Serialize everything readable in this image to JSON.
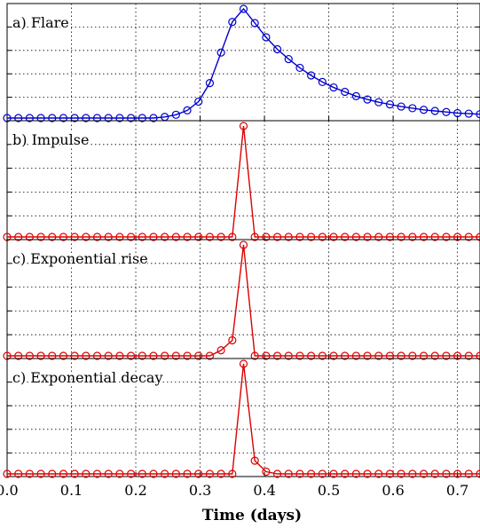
{
  "chart_data": {
    "type": "line",
    "xlabel": "Time (days)",
    "xlim": [
      0.0,
      0.735
    ],
    "x_ticks": [
      "0.0",
      "0.1",
      "0.2",
      "0.3",
      "0.4",
      "0.5",
      "0.6",
      "0.7"
    ],
    "grid": true,
    "panels": [
      {
        "label": "a) Flare",
        "color": "#0000cc",
        "ylim": [
          0,
          1
        ],
        "x": [
          0.0,
          0.0175,
          0.035,
          0.0525,
          0.07,
          0.0875,
          0.105,
          0.1225,
          0.14,
          0.1575,
          0.175,
          0.1925,
          0.21,
          0.2275,
          0.245,
          0.2625,
          0.28,
          0.2975,
          0.315,
          0.3325,
          0.35,
          0.3675,
          0.385,
          0.4025,
          0.42,
          0.4375,
          0.455,
          0.4725,
          0.49,
          0.5075,
          0.525,
          0.5425,
          0.56,
          0.5775,
          0.595,
          0.6125,
          0.63,
          0.6475,
          0.665,
          0.6825,
          0.7,
          0.7175,
          0.735
        ],
        "y": [
          0.0,
          0.0,
          0.0,
          0.0,
          0.0,
          0.0,
          0.0,
          0.0,
          0.0,
          0.0,
          0.0,
          0.0,
          0.0,
          0.0,
          0.01,
          0.03,
          0.07,
          0.15,
          0.32,
          0.6,
          0.88,
          1.0,
          0.87,
          0.74,
          0.63,
          0.54,
          0.46,
          0.39,
          0.33,
          0.28,
          0.24,
          0.2,
          0.17,
          0.145,
          0.125,
          0.105,
          0.09,
          0.075,
          0.065,
          0.055,
          0.045,
          0.04,
          0.035
        ]
      },
      {
        "label": "b) Impulse",
        "color": "#dd0000",
        "ylim": [
          0,
          1
        ],
        "x": [
          0.0,
          0.0175,
          0.035,
          0.0525,
          0.07,
          0.0875,
          0.105,
          0.1225,
          0.14,
          0.1575,
          0.175,
          0.1925,
          0.21,
          0.2275,
          0.245,
          0.2625,
          0.28,
          0.2975,
          0.315,
          0.3325,
          0.35,
          0.3675,
          0.385,
          0.4025,
          0.42,
          0.4375,
          0.455,
          0.4725,
          0.49,
          0.5075,
          0.525,
          0.5425,
          0.56,
          0.5775,
          0.595,
          0.6125,
          0.63,
          0.6475,
          0.665,
          0.6825,
          0.7,
          0.7175,
          0.735
        ],
        "y": [
          0,
          0,
          0,
          0,
          0,
          0,
          0,
          0,
          0,
          0,
          0,
          0,
          0,
          0,
          0,
          0,
          0,
          0,
          0,
          0,
          0,
          1.0,
          0,
          0,
          0,
          0,
          0,
          0,
          0,
          0,
          0,
          0,
          0,
          0,
          0,
          0,
          0,
          0,
          0,
          0,
          0,
          0,
          0
        ]
      },
      {
        "label": "c) Exponential rise",
        "color": "#dd0000",
        "ylim": [
          0,
          1
        ],
        "x": [
          0.0,
          0.0175,
          0.035,
          0.0525,
          0.07,
          0.0875,
          0.105,
          0.1225,
          0.14,
          0.1575,
          0.175,
          0.1925,
          0.21,
          0.2275,
          0.245,
          0.2625,
          0.28,
          0.2975,
          0.315,
          0.3325,
          0.35,
          0.3675,
          0.385,
          0.4025,
          0.42,
          0.4375,
          0.455,
          0.4725,
          0.49,
          0.5075,
          0.525,
          0.5425,
          0.56,
          0.5775,
          0.595,
          0.6125,
          0.63,
          0.6475,
          0.665,
          0.6825,
          0.7,
          0.7175,
          0.735
        ],
        "y": [
          0,
          0,
          0,
          0,
          0,
          0,
          0,
          0,
          0,
          0,
          0,
          0,
          0,
          0,
          0,
          0,
          0,
          0,
          0.0,
          0.05,
          0.14,
          1.0,
          0,
          0,
          0,
          0,
          0,
          0,
          0,
          0,
          0,
          0,
          0,
          0,
          0,
          0,
          0,
          0,
          0,
          0,
          0,
          0,
          0
        ]
      },
      {
        "label": "c) Exponential decay",
        "color": "#dd0000",
        "ylim": [
          0,
          1
        ],
        "x": [
          0.0,
          0.0175,
          0.035,
          0.0525,
          0.07,
          0.0875,
          0.105,
          0.1225,
          0.14,
          0.1575,
          0.175,
          0.1925,
          0.21,
          0.2275,
          0.245,
          0.2625,
          0.28,
          0.2975,
          0.315,
          0.3325,
          0.35,
          0.3675,
          0.385,
          0.4025,
          0.42,
          0.4375,
          0.455,
          0.4725,
          0.49,
          0.5075,
          0.525,
          0.5425,
          0.56,
          0.5775,
          0.595,
          0.6125,
          0.63,
          0.6475,
          0.665,
          0.6825,
          0.7,
          0.7175,
          0.735
        ],
        "y": [
          0,
          0,
          0,
          0,
          0,
          0,
          0,
          0,
          0,
          0,
          0,
          0,
          0,
          0,
          0,
          0,
          0,
          0,
          0,
          0,
          0,
          1.0,
          0.12,
          0.02,
          0,
          0,
          0,
          0,
          0,
          0,
          0,
          0,
          0,
          0,
          0,
          0,
          0,
          0,
          0,
          0,
          0,
          0,
          0
        ]
      }
    ]
  }
}
